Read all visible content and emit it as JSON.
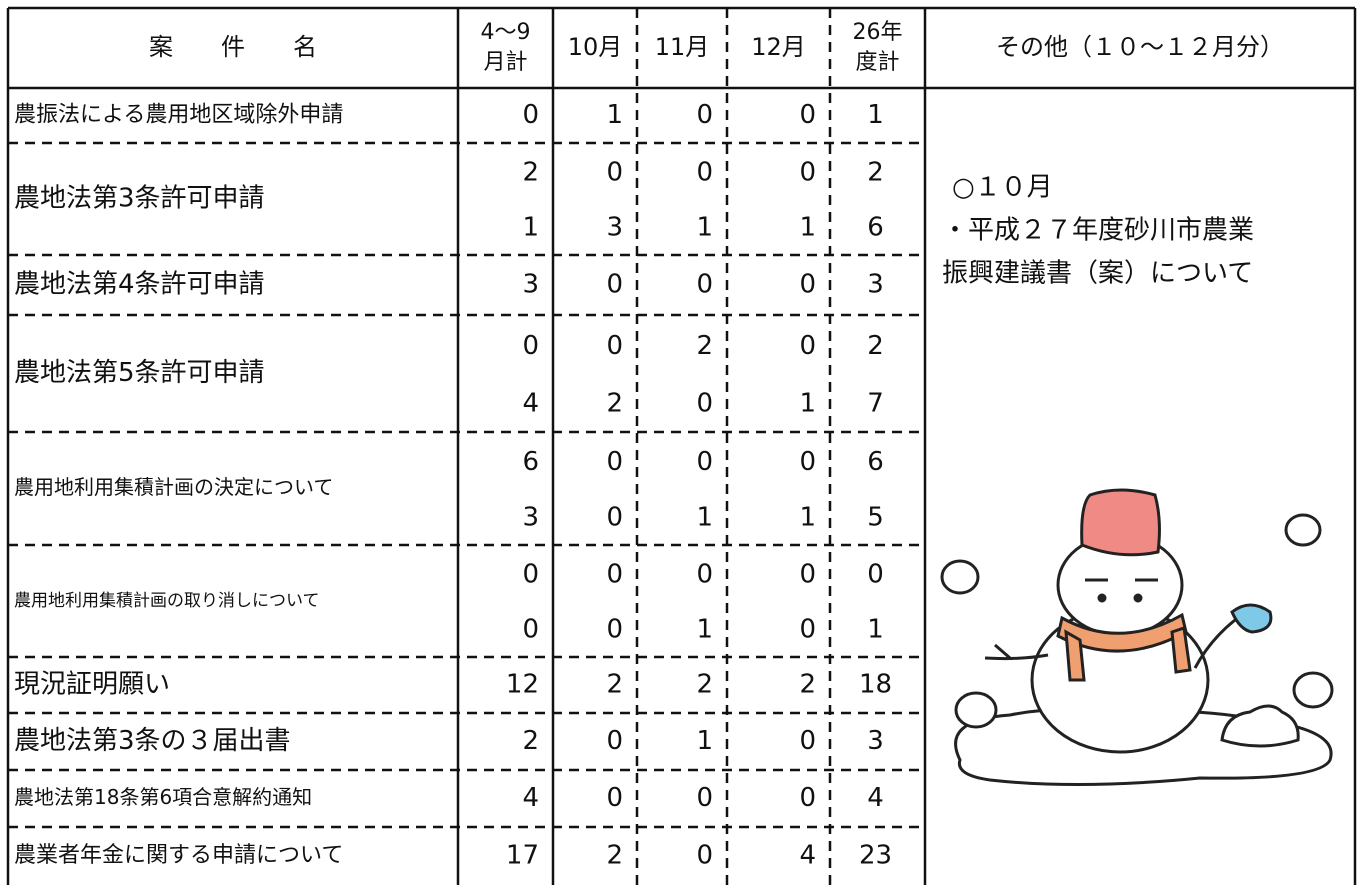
{
  "table": {
    "columns": [
      [
        "案　　件　　名"
      ],
      [
        "4～9",
        "月計"
      ],
      [
        "10月"
      ],
      [
        "11月"
      ],
      [
        "12月"
      ],
      [
        "26年",
        "度計"
      ],
      [
        "その他（１０～１２月分）"
      ]
    ],
    "rows": [
      {
        "name": "農振法による農用地区域除外申請",
        "values": [
          [
            0,
            1,
            0,
            0,
            1
          ]
        ]
      },
      {
        "name": "農地法第3条許可申請",
        "values": [
          [
            2,
            0,
            0,
            0,
            2
          ],
          [
            1,
            3,
            1,
            1,
            6
          ]
        ]
      },
      {
        "name": "農地法第4条許可申請",
        "values": [
          [
            3,
            0,
            0,
            0,
            3
          ]
        ]
      },
      {
        "name": "農地法第5条許可申請",
        "values": [
          [
            0,
            0,
            2,
            0,
            2
          ],
          [
            4,
            2,
            0,
            1,
            7
          ]
        ]
      },
      {
        "name": "農用地利用集積計画の決定について",
        "values": [
          [
            6,
            0,
            0,
            0,
            6
          ],
          [
            3,
            0,
            1,
            1,
            5
          ]
        ]
      },
      {
        "name": "農用地利用集積計画の取り消しについて",
        "values": [
          [
            0,
            0,
            0,
            0,
            0
          ],
          [
            0,
            0,
            1,
            0,
            1
          ]
        ]
      },
      {
        "name": "現況証明願い",
        "values": [
          [
            12,
            2,
            2,
            2,
            18
          ]
        ]
      },
      {
        "name": "農地法第3条の３届出書",
        "values": [
          [
            2,
            0,
            1,
            0,
            3
          ]
        ]
      },
      {
        "name": "農地法第18条第6項合意解約通知",
        "values": [
          [
            4,
            0,
            0,
            0,
            4
          ]
        ]
      },
      {
        "name": "農業者年金に関する申請について",
        "values": [
          [
            17,
            2,
            0,
            4,
            23
          ]
        ]
      }
    ],
    "other": [
      "○１０月",
      "・平成２７年度砂川市農業",
      "振興建議書（案）について"
    ]
  }
}
